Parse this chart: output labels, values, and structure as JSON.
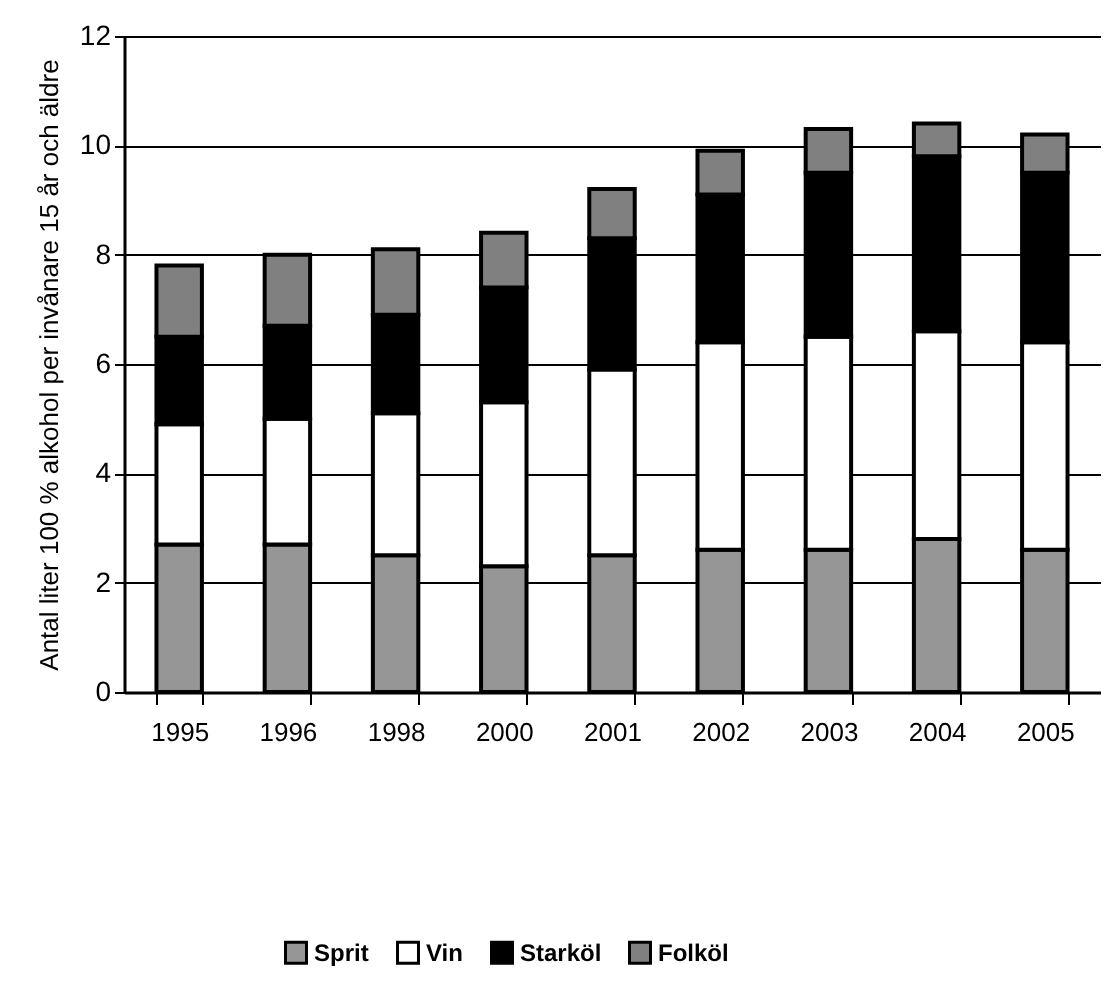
{
  "chart_data": {
    "type": "bar",
    "stacked": true,
    "ylabel": "Antal liter 100 % alkohol per invånare 15 år och äldre",
    "categories": [
      "1995",
      "1996",
      "1998",
      "2000",
      "2001",
      "2002",
      "2003",
      "2004",
      "2005"
    ],
    "series": [
      {
        "name": "Sprit",
        "color": "#969696",
        "values": [
          2.7,
          2.7,
          2.5,
          2.3,
          2.5,
          2.6,
          2.6,
          2.8,
          2.6
        ]
      },
      {
        "name": "Vin",
        "color": "#ffffff",
        "values": [
          2.2,
          2.3,
          2.6,
          3.0,
          3.4,
          3.8,
          3.9,
          3.8,
          3.8
        ]
      },
      {
        "name": "Starköl",
        "color": "#000000",
        "values": [
          1.6,
          1.7,
          1.8,
          2.1,
          2.4,
          2.7,
          3.0,
          3.2,
          3.1
        ]
      },
      {
        "name": "Folköl",
        "color": "#808080",
        "values": [
          1.3,
          1.3,
          1.2,
          1.0,
          0.9,
          0.8,
          0.8,
          0.6,
          0.7
        ]
      }
    ],
    "ylim": [
      0,
      12
    ],
    "yticks": [
      0,
      2,
      4,
      6,
      8,
      10,
      12
    ],
    "grid": "y",
    "legend": "bottom"
  }
}
